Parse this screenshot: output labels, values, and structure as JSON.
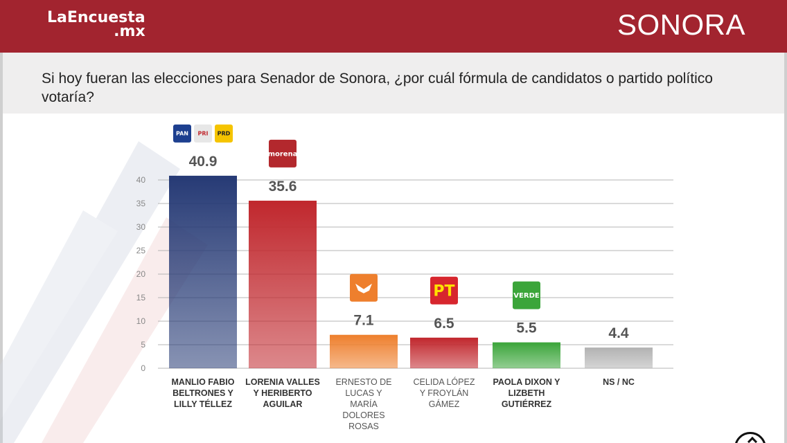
{
  "header": {
    "brand_line1": "LaEncuesta",
    "brand_line2": ".mx",
    "region": "SONORA"
  },
  "question": "Si hoy fueran las elecciones para Senador de Sonora, ¿por cuál fórmula de candidatos o partido político votaría?",
  "colors": {
    "header_bg": "#a2242f",
    "question_bg": "#efeeee",
    "grid": "#b5b5b5"
  },
  "chart_data": {
    "type": "bar",
    "title": "Si hoy fueran las elecciones para Senador de Sonora, ¿por cuál fórmula de candidatos o partido político votaría?",
    "xlabel": "",
    "ylabel": "",
    "ylim": [
      0,
      40
    ],
    "yticks": [
      0,
      5,
      10,
      15,
      20,
      25,
      30,
      35,
      40
    ],
    "grid": true,
    "categories": [
      [
        "MANLIO FABIO",
        "BELTRONES Y",
        "LILLY TÉLLEZ"
      ],
      [
        "LORENIA VALLES",
        "Y HERIBERTO",
        "AGUILAR"
      ],
      [
        "ERNESTO DE",
        "LUCAS Y",
        "MARÍA",
        "DOLORES",
        "ROSAS"
      ],
      [
        "CELIDA LÓPEZ",
        "Y FROYLÁN",
        "GÁMEZ"
      ],
      [
        "PAOLA DIXON Y",
        "LIZBETH",
        "GUTIÉRREZ"
      ],
      [
        "NS / NC"
      ]
    ],
    "values": [
      40.9,
      35.6,
      7.1,
      6.5,
      5.5,
      4.4
    ],
    "value_labels": [
      "40.9",
      "35.6",
      "7.1",
      "6.5",
      "5.5",
      "4.4"
    ],
    "bar_colors": [
      "#263a75",
      "#c0272d",
      "#ee7f2d",
      "#c1272d",
      "#3ba53a",
      "#b2b2b2"
    ],
    "bold_categories": [
      true,
      true,
      false,
      false,
      true,
      true
    ],
    "party_logos": [
      [
        {
          "name": "pan-logo",
          "text": "PAN",
          "bg": "#1d3f8f",
          "fg": "#ffffff"
        },
        {
          "name": "pri-logo",
          "text": "PRI",
          "bg": "#e7e7e7",
          "fg": "#c0272d"
        },
        {
          "name": "prd-logo",
          "text": "PRD",
          "bg": "#f5c400",
          "fg": "#222222"
        }
      ],
      [
        {
          "name": "morena-logo",
          "text": "morena",
          "bg": "#b3282d",
          "fg": "#ffffff"
        }
      ],
      [
        {
          "name": "movimiento-ciudadano-logo",
          "text": "",
          "bg": "#ee7f2d",
          "fg": "#ffffff"
        }
      ],
      [
        {
          "name": "pt-logo",
          "text": "PT",
          "bg": "#d7262e",
          "fg": "#ffe100"
        }
      ],
      [
        {
          "name": "verde-logo",
          "text": "VERDE",
          "bg": "#3ba53a",
          "fg": "#ffffff"
        }
      ],
      []
    ]
  }
}
